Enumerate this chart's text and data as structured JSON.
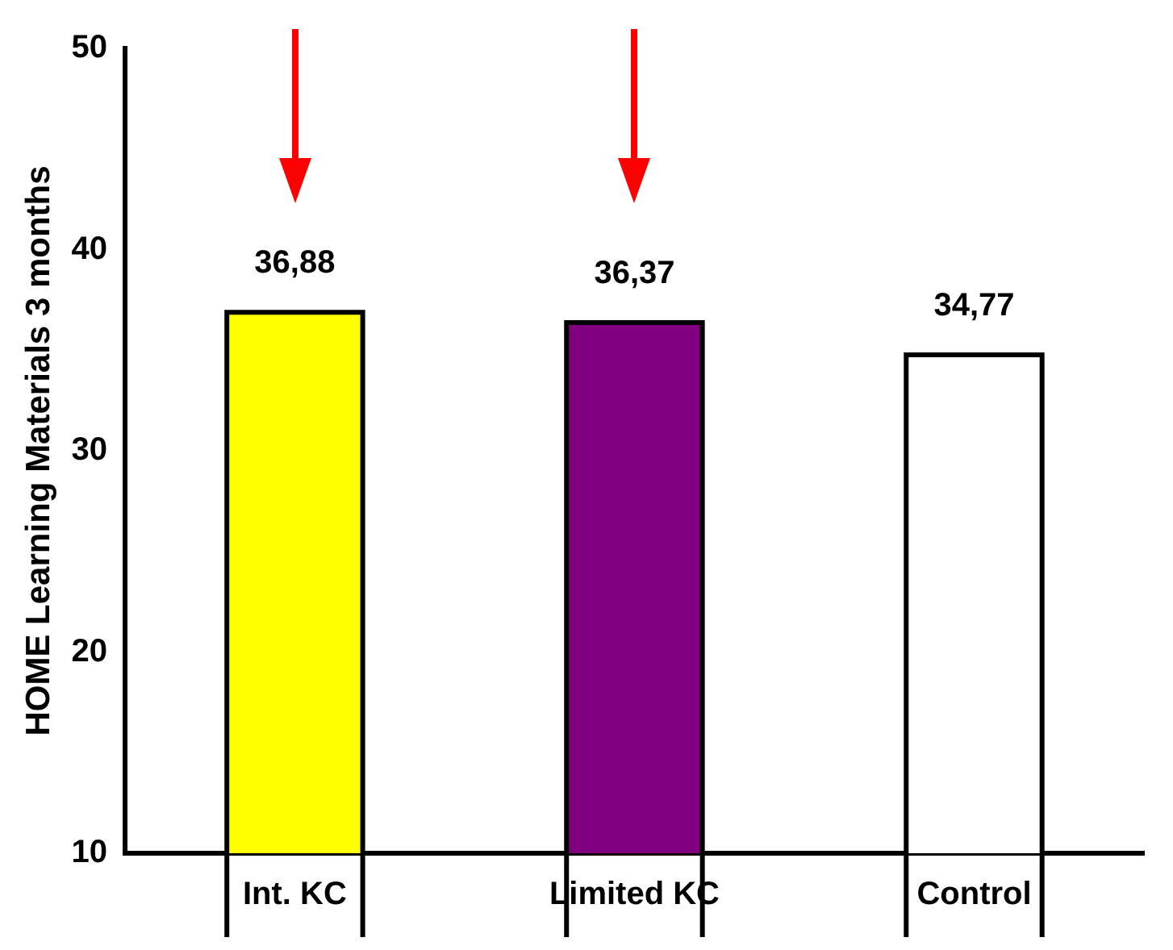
{
  "chart_data": {
    "type": "bar",
    "ylabel": "HOME Learning Materials 3 months",
    "categories": [
      "Int. KC",
      "Limited KC",
      "Control"
    ],
    "values": [
      36.88,
      36.37,
      34.77
    ],
    "value_labels": [
      "36,88",
      "36,37",
      "34,77"
    ],
    "colors": [
      "#ffff00",
      "#800080",
      "#ffffff"
    ],
    "ylim": [
      10,
      50
    ],
    "yticks": [
      10,
      20,
      30,
      40,
      50
    ],
    "grid": false,
    "legend": false
  }
}
